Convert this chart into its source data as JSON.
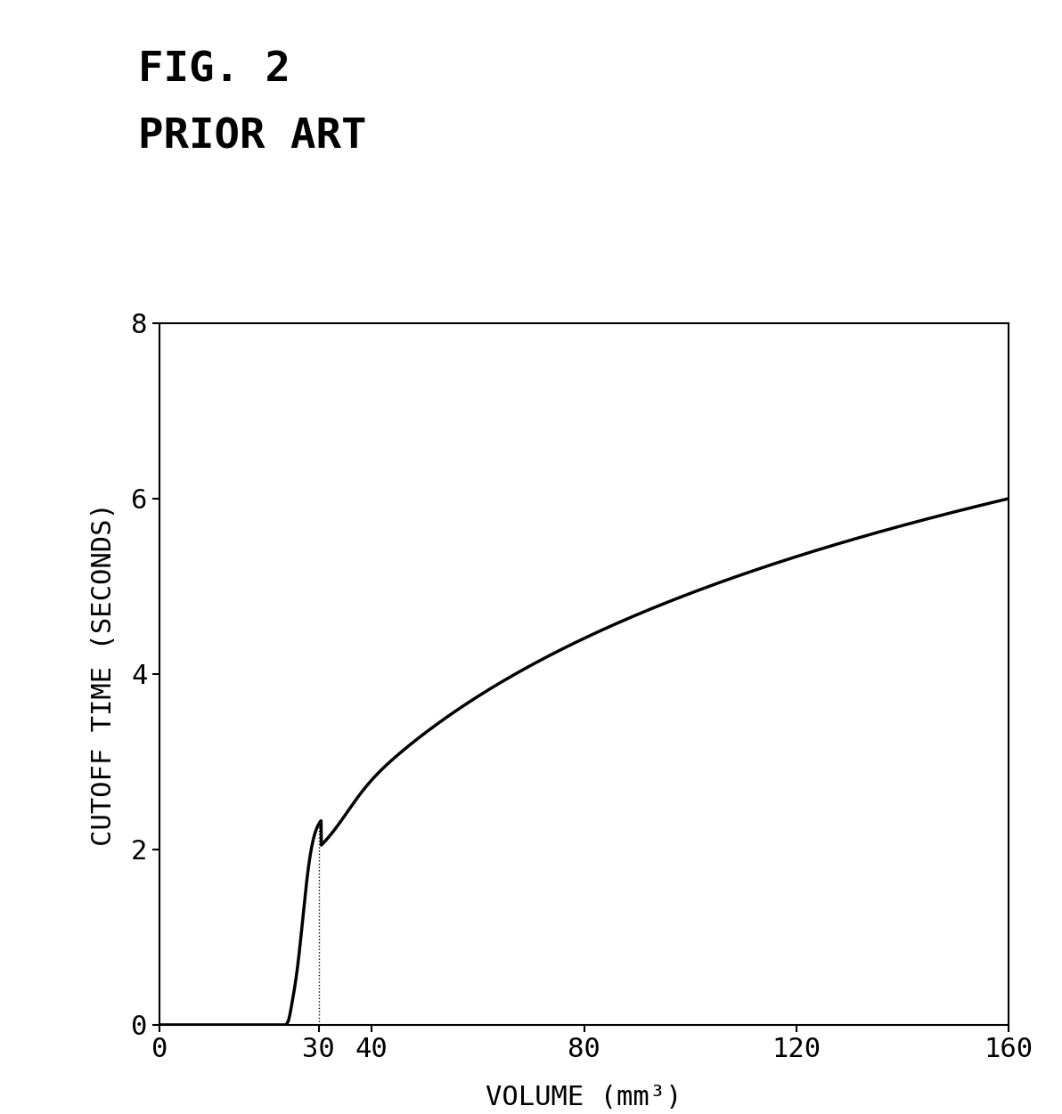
{
  "title_line1": "FIG. 2",
  "title_line2": "PRIOR ART",
  "xlabel": "VOLUME (mm³)",
  "ylabel": "CUTOFF TIME (SECONDS)",
  "xlim": [
    0,
    160
  ],
  "ylim": [
    0,
    8
  ],
  "xticks": [
    0,
    30,
    40,
    80,
    120,
    160
  ],
  "yticks": [
    0,
    2,
    4,
    6,
    8
  ],
  "background_color": "#ffffff",
  "line_color": "#000000",
  "dotted_line_color": "#000000",
  "dotted_x": 30.0,
  "title_fontsize": 34,
  "axis_label_fontsize": 22,
  "tick_fontsize": 22
}
